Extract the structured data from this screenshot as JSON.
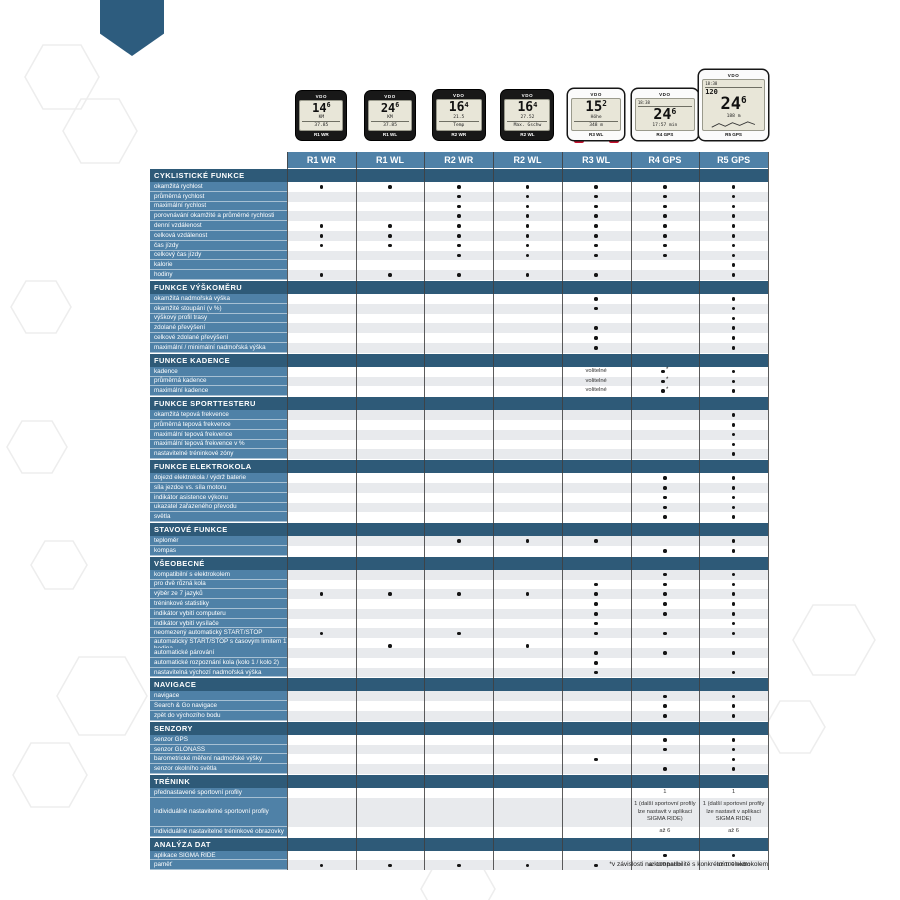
{
  "page": {
    "footnote": "*v závislosti na kompatibilitě s konkrétním elektrokolem"
  },
  "colors": {
    "section_header": "#2e5a78",
    "row_label": "#4f81a7",
    "stripe": "#e8eaed",
    "dot": "#141414",
    "accent_red": "#c8102e"
  },
  "models": [
    "R1 WR",
    "R1 WL",
    "R2 WR",
    "R2 WL",
    "R3 WL",
    "R4 GPS",
    "R5 GPS"
  ],
  "devices": [
    {
      "name": "R1 WR",
      "body": "dark",
      "brand": "VDO",
      "main": "14.6",
      "sub": [
        "KM",
        "37.85"
      ]
    },
    {
      "name": "R1 WL",
      "body": "dark",
      "brand": "VDO",
      "main": "24.6",
      "sub": [
        "KM",
        "37.85"
      ]
    },
    {
      "name": "R2 WR",
      "body": "dark",
      "brand": "VDO",
      "main": "16.4",
      "sub": [
        "21.5",
        "Temp"
      ]
    },
    {
      "name": "R2 WL",
      "body": "dark",
      "brand": "VDO",
      "main": "16.4",
      "sub": [
        "27.52",
        "Max. Gschw"
      ]
    },
    {
      "name": "R3 WL",
      "body": "light",
      "brand": "VDO",
      "main": "15.2",
      "sub": [
        "Höhe",
        "348 m"
      ]
    },
    {
      "name": "R4 GPS",
      "body": "light",
      "brand": "VDO",
      "top": "18:38",
      "main": "24.6",
      "sub": [
        "17:57 min"
      ]
    },
    {
      "name": "R5 GPS",
      "body": "light",
      "brand": "VDO",
      "top": "18:38",
      "stat": "120",
      "main": "24.6",
      "sub": [
        "188 m"
      ],
      "chart": true
    }
  ],
  "sections": [
    {
      "title": "CYKLISTICKÉ FUNKCE",
      "first_row_gray": false,
      "rows": [
        {
          "label": "okamžitá rychlost",
          "cells": [
            "●",
            "●",
            "●",
            "●",
            "●",
            "●",
            "●"
          ]
        },
        {
          "label": "průměrná rychlost",
          "cells": [
            "",
            "",
            "●",
            "●",
            "●",
            "●",
            "●"
          ]
        },
        {
          "label": "maximální rychlost",
          "cells": [
            "",
            "",
            "●",
            "●",
            "●",
            "●",
            "●"
          ]
        },
        {
          "label": "porovnávání okamžité a průměrné rychlosti",
          "cells": [
            "",
            "",
            "●",
            "●",
            "●",
            "●",
            "●"
          ]
        },
        {
          "label": "denní vzdálenost",
          "cells": [
            "●",
            "●",
            "●",
            "●",
            "●",
            "●",
            "●"
          ]
        },
        {
          "label": "celková vzdálenost",
          "cells": [
            "●",
            "●",
            "●",
            "●",
            "●",
            "●",
            "●"
          ]
        },
        {
          "label": "čas jízdy",
          "cells": [
            "●",
            "●",
            "●",
            "●",
            "●",
            "●",
            "●"
          ]
        },
        {
          "label": "celkový čas jízdy",
          "cells": [
            "",
            "",
            "●",
            "●",
            "●",
            "●",
            "●"
          ]
        },
        {
          "label": "kalorie",
          "cells": [
            "",
            "",
            "",
            "",
            "",
            "",
            "●"
          ]
        },
        {
          "label": "hodiny",
          "cells": [
            "●",
            "●",
            "●",
            "●",
            "●",
            "",
            "●"
          ]
        }
      ]
    },
    {
      "title": "FUNKCE VÝŠKOMĚRU",
      "first_row_gray": false,
      "rows": [
        {
          "label": "okamžitá nadmořská výška",
          "cells": [
            "",
            "",
            "",
            "",
            "●",
            "",
            "●"
          ]
        },
        {
          "label": "okamžité stoupání (v %)",
          "cells": [
            "",
            "",
            "",
            "",
            "●",
            "",
            "●"
          ]
        },
        {
          "label": "výškový profil trasy",
          "cells": [
            "",
            "",
            "",
            "",
            "",
            "",
            "●"
          ]
        },
        {
          "label": "zdolané převýšení",
          "cells": [
            "",
            "",
            "",
            "",
            "●",
            "",
            "●"
          ]
        },
        {
          "label": "celkové zdolané převýšení",
          "cells": [
            "",
            "",
            "",
            "",
            "●",
            "",
            "●"
          ]
        },
        {
          "label": "maximální / minimální nadmořská výška",
          "cells": [
            "",
            "",
            "",
            "",
            "●",
            "",
            "●"
          ]
        }
      ]
    },
    {
      "title": "FUNKCE KADENCE",
      "first_row_gray": false,
      "rows": [
        {
          "label": "kadence",
          "cells": [
            "",
            "",
            "",
            "",
            "volitelné",
            "●*",
            "●"
          ]
        },
        {
          "label": "průměrná kadence",
          "cells": [
            "",
            "",
            "",
            "",
            "volitelné",
            "●*",
            "●"
          ]
        },
        {
          "label": "maximální kadence",
          "cells": [
            "",
            "",
            "",
            "",
            "volitelné",
            "●*",
            "●"
          ]
        }
      ]
    },
    {
      "title": "FUNKCE SPORTTESTERU",
      "first_row_gray": true,
      "rows": [
        {
          "label": "okamžitá tepová frekvence",
          "cells": [
            "",
            "",
            "",
            "",
            "",
            "",
            "●"
          ]
        },
        {
          "label": "průměrná tepová frekvence",
          "cells": [
            "",
            "",
            "",
            "",
            "",
            "",
            "●"
          ]
        },
        {
          "label": "maximální tepová frekvence",
          "cells": [
            "",
            "",
            "",
            "",
            "",
            "",
            "●"
          ]
        },
        {
          "label": "maximální tepová frekvence v %",
          "cells": [
            "",
            "",
            "",
            "",
            "",
            "",
            "●"
          ]
        },
        {
          "label": "nastavitelné tréninkové zóny",
          "cells": [
            "",
            "",
            "",
            "",
            "",
            "",
            "●"
          ]
        }
      ]
    },
    {
      "title": "FUNKCE ELEKTROKOLA",
      "first_row_gray": false,
      "rows": [
        {
          "label": "dojezd elektrokola / výdrž baterie",
          "cells": [
            "",
            "",
            "",
            "",
            "",
            "●",
            "●"
          ]
        },
        {
          "label": "síla jezdce vs. síla motoru",
          "cells": [
            "",
            "",
            "",
            "",
            "",
            "●",
            "●"
          ]
        },
        {
          "label": "indikátor asistence výkonu",
          "cells": [
            "",
            "",
            "",
            "",
            "",
            "●",
            "●"
          ]
        },
        {
          "label": "ukazatel zařazeného převodu",
          "cells": [
            "",
            "",
            "",
            "",
            "",
            "●",
            "●"
          ]
        },
        {
          "label": "světla",
          "cells": [
            "",
            "",
            "",
            "",
            "",
            "●",
            "●"
          ]
        }
      ]
    },
    {
      "title": "STAVOVÉ FUNKCE",
      "first_row_gray": true,
      "rows": [
        {
          "label": "teploměr",
          "cells": [
            "",
            "",
            "●",
            "●",
            "●",
            "",
            "●"
          ]
        },
        {
          "label": "kompas",
          "cells": [
            "",
            "",
            "",
            "",
            "",
            "●",
            "●"
          ]
        }
      ]
    },
    {
      "title": "VŠEOBECNÉ",
      "first_row_gray": true,
      "rows": [
        {
          "label": "kompatibilní s elektrokolem",
          "cells": [
            "",
            "",
            "",
            "",
            "",
            "●",
            "●"
          ]
        },
        {
          "label": "pro dvě různá kola",
          "cells": [
            "",
            "",
            "",
            "",
            "●",
            "●",
            "●"
          ]
        },
        {
          "label": "výběr ze 7 jazyků",
          "cells": [
            "●",
            "●",
            "●",
            "●",
            "●",
            "●",
            "●"
          ]
        },
        {
          "label": "tréninkové statistiky",
          "cells": [
            "",
            "",
            "",
            "",
            "●",
            "●",
            "●"
          ]
        },
        {
          "label": "indikátor vybití computeru",
          "cells": [
            "",
            "",
            "",
            "",
            "●",
            "●",
            "●"
          ]
        },
        {
          "label": "indikátor vybití vysílače",
          "cells": [
            "",
            "",
            "",
            "",
            "●",
            "",
            "●"
          ]
        },
        {
          "label": "neomezený automatický START/STOP",
          "cells": [
            "●",
            "",
            "●",
            "",
            "●",
            "●",
            "●"
          ]
        },
        {
          "label": "automatický START/STOP s časovým limitem 1 hodina",
          "cells": [
            "",
            "●",
            "",
            "●",
            "",
            "",
            ""
          ]
        },
        {
          "label": "automatické párování",
          "cells": [
            "",
            "",
            "",
            "",
            "●",
            "●",
            "●"
          ]
        },
        {
          "label": "automatické rozpoznání kola (kolo 1 / kolo 2)",
          "cells": [
            "",
            "",
            "",
            "",
            "●",
            "",
            ""
          ]
        },
        {
          "label": "nastavitelná výchozí nadmořská výška",
          "cells": [
            "",
            "",
            "",
            "",
            "●",
            "",
            "●"
          ]
        }
      ]
    },
    {
      "title": "NAVIGACE",
      "first_row_gray": true,
      "rows": [
        {
          "label": "navigace",
          "cells": [
            "",
            "",
            "",
            "",
            "",
            "●",
            "●"
          ]
        },
        {
          "label": "Search & Go navigace",
          "cells": [
            "",
            "",
            "",
            "",
            "",
            "●",
            "●"
          ]
        },
        {
          "label": "zpět do výchozího bodu",
          "cells": [
            "",
            "",
            "",
            "",
            "",
            "●",
            "●"
          ]
        }
      ]
    },
    {
      "title": "SENZORY",
      "first_row_gray": false,
      "rows": [
        {
          "label": "senzor GPS",
          "cells": [
            "",
            "",
            "",
            "",
            "",
            "●",
            "●"
          ]
        },
        {
          "label": "senzor GLONASS",
          "cells": [
            "",
            "",
            "",
            "",
            "",
            "●",
            "●"
          ]
        },
        {
          "label": "barometrické měření nadmořské výšky",
          "cells": [
            "",
            "",
            "",
            "",
            "●",
            "",
            "●"
          ]
        },
        {
          "label": "senzor okolního světla",
          "cells": [
            "",
            "",
            "",
            "",
            "",
            "●",
            "●"
          ]
        }
      ]
    },
    {
      "title": "TRÉNINK",
      "first_row_gray": false,
      "rows": [
        {
          "label": "přednastavené sportovní profily",
          "cells": [
            "",
            "",
            "",
            "",
            "",
            "1",
            "1"
          ]
        },
        {
          "label": "individuálně nastavitelné sportovní profily",
          "tall": true,
          "cells": [
            "",
            "",
            "",
            "",
            "",
            "1 (další sportovní profily lze nastavit v aplikaci SIGMA RIDE)",
            "1 (další sportovní profily lze nastavit v aplikaci SIGMA RIDE)"
          ]
        },
        {
          "label": "individuálně nastavitelné tréninkové obrazovky",
          "cells": [
            "",
            "",
            "",
            "",
            "",
            "až 6",
            "až 6"
          ]
        }
      ]
    },
    {
      "title": "ANALÝZA DAT",
      "first_row_gray": false,
      "rows": [
        {
          "label": "aplikace SIGMA RIDE",
          "cells": [
            "",
            "",
            "",
            "",
            "",
            "●",
            "●"
          ]
        },
        {
          "label": "paměť",
          "cells": [
            "●",
            "●",
            "●",
            "●",
            "●",
            "až 100 hodin",
            "až 100 hodin"
          ]
        }
      ]
    }
  ]
}
